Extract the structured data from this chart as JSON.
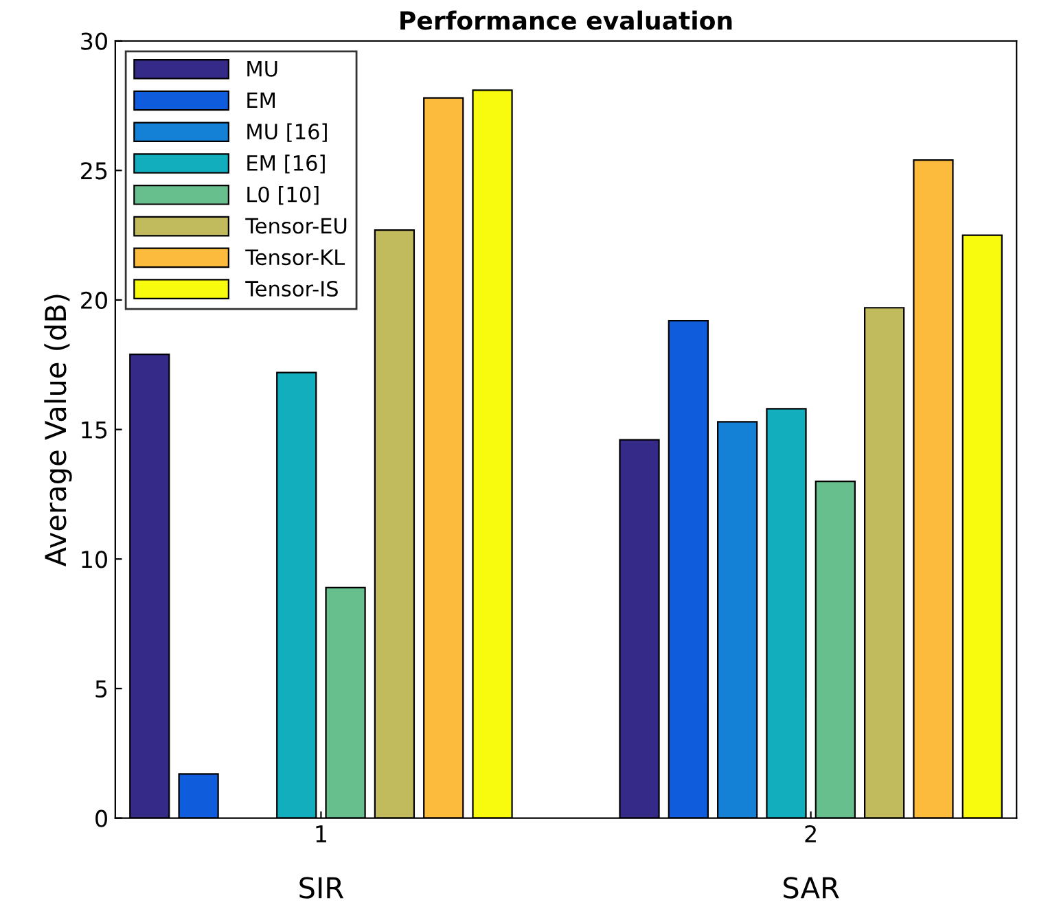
{
  "chart_data": {
    "type": "bar",
    "title": "Performance evaluation",
    "ylabel": "Average Value (dB)",
    "categories": [
      "1",
      "2"
    ],
    "annotations": [
      "SIR",
      "SAR"
    ],
    "ylim": [
      0,
      30
    ],
    "yticks": [
      0,
      5,
      10,
      15,
      20,
      25,
      30
    ],
    "grid": false,
    "legend": "top left",
    "series": [
      {
        "name": "MU",
        "color": "#352a87",
        "values": [
          17.9,
          14.6
        ]
      },
      {
        "name": "EM",
        "color": "#0f5cdd",
        "values": [
          1.7,
          19.2
        ]
      },
      {
        "name": "MU [16]",
        "color": "#1481d6",
        "values": [
          null,
          15.3
        ]
      },
      {
        "name": "EM [16]",
        "color": "#13aebd",
        "values": [
          17.2,
          15.8
        ]
      },
      {
        "name": "L0 [10]",
        "color": "#66bf8c",
        "values": [
          8.9,
          13.0
        ]
      },
      {
        "name": "Tensor-EU",
        "color": "#c2bb5e",
        "values": [
          22.7,
          19.7
        ]
      },
      {
        "name": "Tensor-KL",
        "color": "#fcbb3d",
        "values": [
          27.8,
          25.4
        ]
      },
      {
        "name": "Tensor-IS",
        "color": "#f9fb0e",
        "values": [
          28.1,
          22.5
        ]
      }
    ]
  }
}
